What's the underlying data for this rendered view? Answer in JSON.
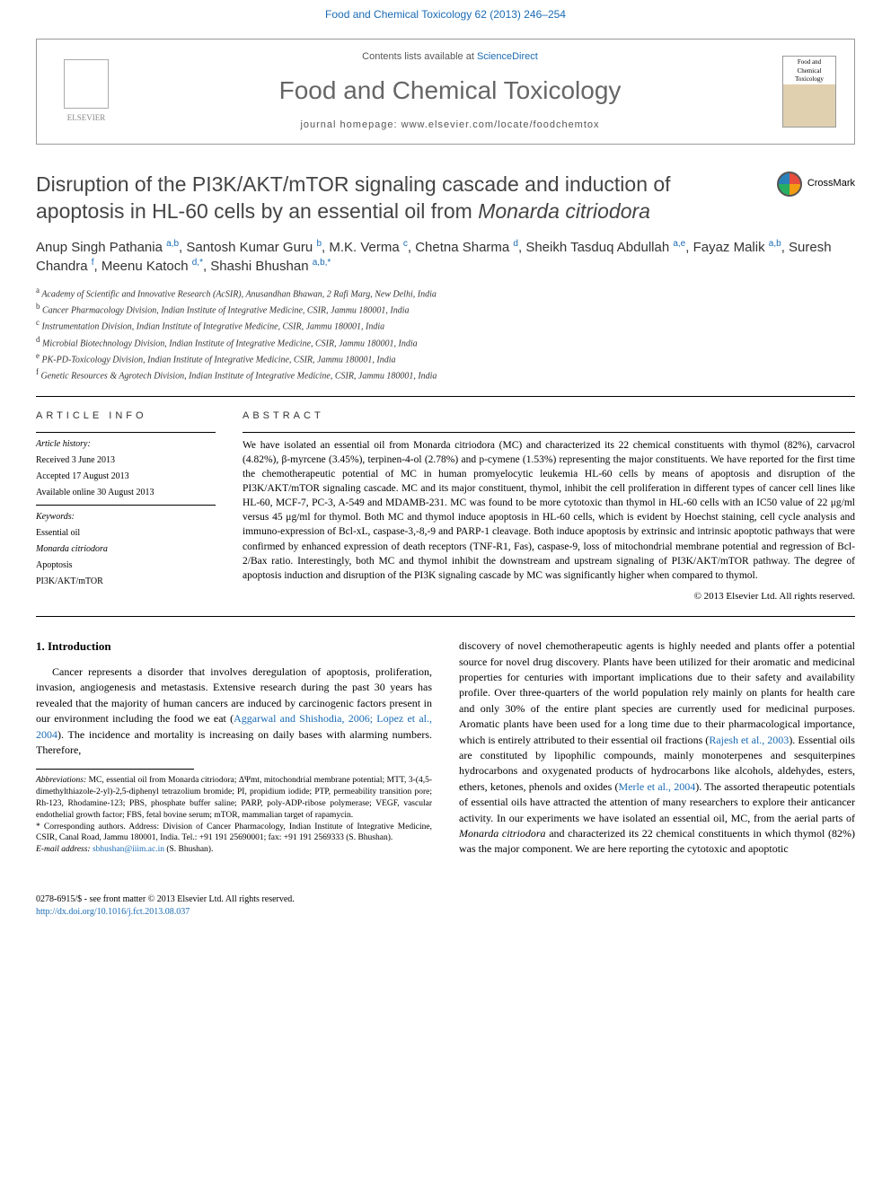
{
  "header": {
    "journal_link": "Food and Chemical Toxicology 62 (2013) 246–254",
    "contents_line_pre": "Contents lists available at ",
    "contents_line_link": "ScienceDirect",
    "journal_title": "Food and Chemical Toxicology",
    "homepage_pre": "journal homepage: ",
    "homepage_url": "www.elsevier.com/locate/foodchemtox",
    "elsevier_label": "ELSEVIER",
    "cover_text": "Food and Chemical Toxicology"
  },
  "title": "Disruption of the PI3K/AKT/mTOR signaling cascade and induction of apoptosis in HL-60 cells by an essential oil from ",
  "title_italic": "Monarda citriodora",
  "crossmark_label": "CrossMark",
  "authors_html": "Anup Singh Pathania <sup>a,b</sup>, Santosh Kumar Guru <sup>b</sup>, M.K. Verma <sup>c</sup>, Chetna Sharma <sup>d</sup>, Sheikh Tasduq Abdullah <sup>a,e</sup>, Fayaz Malik <sup>a,b</sup>, Suresh Chandra <sup>f</sup>, Meenu Katoch <sup>d,*</sup>, Shashi Bhushan <sup>a,b,*</sup>",
  "affiliations": [
    {
      "sup": "a",
      "text": "Academy of Scientific and Innovative Research (AcSIR), Anusandhan Bhawan, 2 Rafi Marg, New Delhi, India"
    },
    {
      "sup": "b",
      "text": "Cancer Pharmacology Division, Indian Institute of Integrative Medicine, CSIR, Jammu 180001, India"
    },
    {
      "sup": "c",
      "text": "Instrumentation Division, Indian Institute of Integrative Medicine, CSIR, Jammu 180001, India"
    },
    {
      "sup": "d",
      "text": "Microbial Biotechnology Division, Indian Institute of Integrative Medicine, CSIR, Jammu 180001, India"
    },
    {
      "sup": "e",
      "text": "PK-PD-Toxicology Division, Indian Institute of Integrative Medicine, CSIR, Jammu 180001, India"
    },
    {
      "sup": "f",
      "text": "Genetic Resources & Agrotech Division, Indian Institute of Integrative Medicine, CSIR, Jammu 180001, India"
    }
  ],
  "article_info": {
    "heading": "article info",
    "history_label": "Article history:",
    "received": "Received 3 June 2013",
    "accepted": "Accepted 17 August 2013",
    "available": "Available online 30 August 2013",
    "keywords_label": "Keywords:",
    "keywords": [
      "Essential oil",
      "Monarda citriodora",
      "Apoptosis",
      "PI3K/AKT/mTOR"
    ]
  },
  "abstract": {
    "heading": "abstract",
    "text": "We have isolated an essential oil from Monarda citriodora (MC) and characterized its 22 chemical constituents with thymol (82%), carvacrol (4.82%), β-myrcene (3.45%), terpinen-4-ol (2.78%) and p-cymene (1.53%) representing the major constituents. We have reported for the first time the chemotherapeutic potential of MC in human promyelocytic leukemia HL-60 cells by means of apoptosis and disruption of the PI3K/AKT/mTOR signaling cascade. MC and its major constituent, thymol, inhibit the cell proliferation in different types of cancer cell lines like HL-60, MCF-7, PC-3, A-549 and MDAMB-231. MC was found to be more cytotoxic than thymol in HL-60 cells with an IC50 value of 22 μg/ml versus 45 μg/ml for thymol. Both MC and thymol induce apoptosis in HL-60 cells, which is evident by Hoechst staining, cell cycle analysis and immuno-expression of Bcl-xL, caspase-3,-8,-9 and PARP-1 cleavage. Both induce apoptosis by extrinsic and intrinsic apoptotic pathways that were confirmed by enhanced expression of death receptors (TNF-R1, Fas), caspase-9, loss of mitochondrial membrane potential and regression of Bcl-2/Bax ratio. Interestingly, both MC and thymol inhibit the downstream and upstream signaling of PI3K/AKT/mTOR pathway. The degree of apoptosis induction and disruption of the PI3K signaling cascade by MC was significantly higher when compared to thymol.",
    "copyright": "© 2013 Elsevier Ltd. All rights reserved."
  },
  "intro": {
    "heading": "1. Introduction",
    "p1": "Cancer represents a disorder that involves deregulation of apoptosis, proliferation, invasion, angiogenesis and metastasis. Extensive research during the past 30 years has revealed that the majority of human cancers are induced by carcinogenic factors present in our environment including the food we eat (",
    "cite1": "Aggarwal and Shishodia, 2006; Lopez et al., 2004",
    "p1b": "). The incidence and mortality is increasing on daily bases with alarming numbers. Therefore,",
    "p2a": "discovery of novel chemotherapeutic agents is highly needed and plants offer a potential source for novel drug discovery. Plants have been utilized for their aromatic and medicinal properties for centuries with important implications due to their safety and availability profile. Over three-quarters of the world population rely mainly on plants for health care and only 30% of the entire plant species are currently used for medicinal purposes. Aromatic plants have been used for a long time due to their pharmacological importance, which is entirely attributed to their essential oil fractions (",
    "cite2": "Rajesh et al., 2003",
    "p2b": "). Essential oils are constituted by lipophilic compounds, mainly monoterpenes and sesquiterpines hydrocarbons and oxygenated products of hydrocarbons like alcohols, aldehydes, esters, ethers, ketones, phenols and oxides (",
    "cite3": "Merle et al., 2004",
    "p2c": "). The assorted therapeutic potentials of essential oils have attracted the attention of many researchers to explore their anticancer activity. In our experiments we have isolated an essential oil, MC, from the aerial parts of ",
    "p2italic": "Monarda citriodora",
    "p2d": " and characterized its 22 chemical constituents in which thymol (82%) was the major component. We are here reporting the cytotoxic and apoptotic"
  },
  "footnotes": {
    "abbrev_label": "Abbreviations:",
    "abbrev_text": " MC, essential oil from Monarda citriodora; ΔΨmt, mitochondrial membrane potential; MTT, 3-(4,5-dimethylthiazole-2-yl)-2,5-diphenyl tetrazolium bromide; PI, propidium iodide; PTP, permeability transition pore; Rh-123, Rhodamine-123; PBS, phosphate buffer saline; PARP, poly-ADP-ribose polymerase; VEGF, vascular endothelial growth factor; FBS, fetal bovine serum; mTOR, mammalian target of rapamycin.",
    "corr_label": "* Corresponding authors.",
    "corr_text": " Address: Division of Cancer Pharmacology, Indian Institute of Integrative Medicine, CSIR, Canal Road, Jammu 180001, India. Tel.: +91 191 25690001; fax: +91 191 2569333 (S. Bhushan).",
    "email_label": "E-mail address:",
    "email": "sbhushan@iiim.ac.in",
    "email_after": " (S. Bhushan)."
  },
  "footer": {
    "left1": "0278-6915/$ - see front matter © 2013 Elsevier Ltd. All rights reserved.",
    "left2": "http://dx.doi.org/10.1016/j.fct.2013.08.037"
  },
  "colors": {
    "link": "#1a6bb5",
    "heading_gray": "#666666",
    "text": "#000000"
  }
}
